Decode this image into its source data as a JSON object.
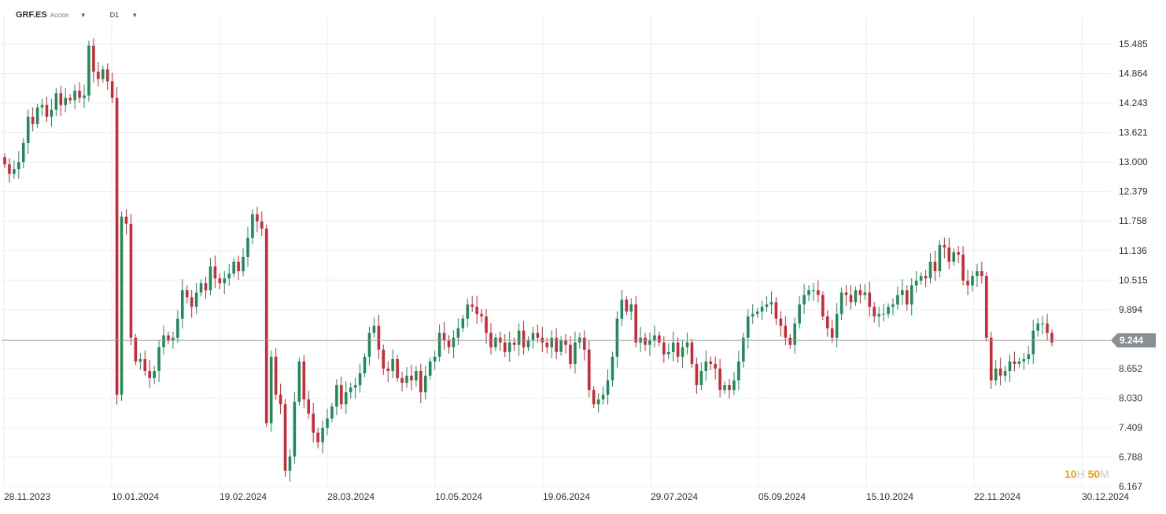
{
  "header": {
    "symbol": "GRF.ES",
    "type_label": "Acción",
    "timeframe": "D1"
  },
  "countdown": {
    "hours": "10",
    "hours_unit": "H",
    "minutes": "50",
    "minutes_unit": "M"
  },
  "colors": {
    "up": "#1f8a5a",
    "down": "#cc2836",
    "grid": "#eeeeee",
    "price_line": "#999999",
    "price_tag": "#8a8f94"
  },
  "chart_data": {
    "type": "candlestick",
    "title": "",
    "xlabel": "",
    "ylabel": "",
    "x_ticks": [
      "28.11.2023",
      "10.01.2024",
      "19.02.2024",
      "28.03.2024",
      "10.05.2024",
      "19.06.2024",
      "29.07.2024",
      "05.09.2024",
      "15.10.2024",
      "22.11.2024",
      "30.12.2024"
    ],
    "y_ticks": [
      "15.485",
      "14.864",
      "14.243",
      "13.621",
      "13.000",
      "12.379",
      "11.758",
      "11.136",
      "10.515",
      "9.894",
      "8.652",
      "8.030",
      "7.409",
      "6.788",
      "6.167"
    ],
    "ylim": [
      6.167,
      15.485
    ],
    "current_price": 9.244,
    "current_price_label": "9.244",
    "grid": true,
    "close": [
      12.95,
      12.75,
      12.85,
      13.0,
      13.4,
      13.95,
      13.8,
      14.15,
      14.2,
      13.95,
      14.1,
      14.45,
      14.2,
      14.35,
      14.3,
      14.5,
      14.35,
      14.4,
      15.45,
      14.9,
      14.75,
      14.95,
      14.7,
      14.35,
      8.1,
      11.85,
      11.7,
      9.3,
      8.8,
      8.85,
      8.6,
      8.45,
      8.6,
      9.1,
      9.35,
      9.25,
      9.3,
      9.7,
      10.3,
      10.15,
      9.95,
      10.25,
      10.45,
      10.3,
      10.8,
      10.55,
      10.45,
      10.55,
      10.65,
      10.9,
      10.7,
      11.0,
      11.4,
      11.9,
      11.75,
      11.6,
      7.5,
      8.9,
      8.1,
      7.9,
      6.5,
      6.8,
      7.95,
      8.8,
      8.0,
      7.7,
      7.3,
      7.1,
      7.4,
      7.6,
      7.85,
      8.3,
      7.9,
      8.15,
      8.25,
      8.3,
      8.55,
      8.9,
      9.4,
      9.55,
      9.05,
      8.65,
      8.6,
      8.85,
      8.45,
      8.35,
      8.5,
      8.4,
      8.6,
      8.15,
      8.5,
      8.8,
      8.9,
      9.4,
      9.25,
      9.1,
      9.3,
      9.5,
      9.7,
      10.0,
      9.95,
      9.8,
      9.75,
      9.4,
      9.1,
      9.3,
      9.2,
      9.0,
      9.2,
      9.15,
      9.45,
      9.1,
      9.25,
      9.4,
      9.3,
      9.2,
      9.1,
      9.3,
      9.0,
      9.25,
      9.15,
      8.75,
      9.2,
      9.3,
      9.05,
      8.2,
      7.9,
      8.0,
      8.1,
      8.4,
      8.9,
      9.7,
      10.1,
      9.85,
      10.0,
      9.2,
      9.3,
      9.15,
      9.25,
      9.35,
      9.2,
      8.95,
      9.0,
      9.2,
      8.9,
      9.1,
      9.2,
      8.75,
      8.3,
      8.6,
      8.8,
      8.75,
      8.65,
      8.2,
      8.3,
      8.2,
      8.4,
      8.8,
      9.3,
      9.75,
      9.8,
      9.85,
      9.95,
      10.0,
      10.05,
      9.7,
      9.55,
      9.3,
      9.15,
      9.6,
      10.0,
      10.2,
      10.3,
      10.3,
      10.2,
      9.75,
      9.5,
      9.3,
      9.8,
      10.25,
      10.2,
      10.05,
      10.3,
      10.2,
      10.25,
      9.95,
      9.75,
      9.8,
      9.8,
      9.95,
      10.0,
      10.2,
      10.3,
      10.0,
      10.4,
      10.5,
      10.6,
      10.55,
      10.9,
      10.7,
      11.25,
      11.2,
      10.9,
      11.1,
      11.05,
      10.5,
      10.4,
      10.6,
      10.7,
      10.6,
      9.3,
      8.4,
      8.65,
      8.5,
      8.6,
      8.8,
      8.75,
      8.8,
      8.85,
      8.95,
      9.45,
      9.6,
      9.6,
      9.4,
      9.2
    ],
    "candles_note_for_render": "",
    "x_axis_last_label": "30.12.2024"
  }
}
